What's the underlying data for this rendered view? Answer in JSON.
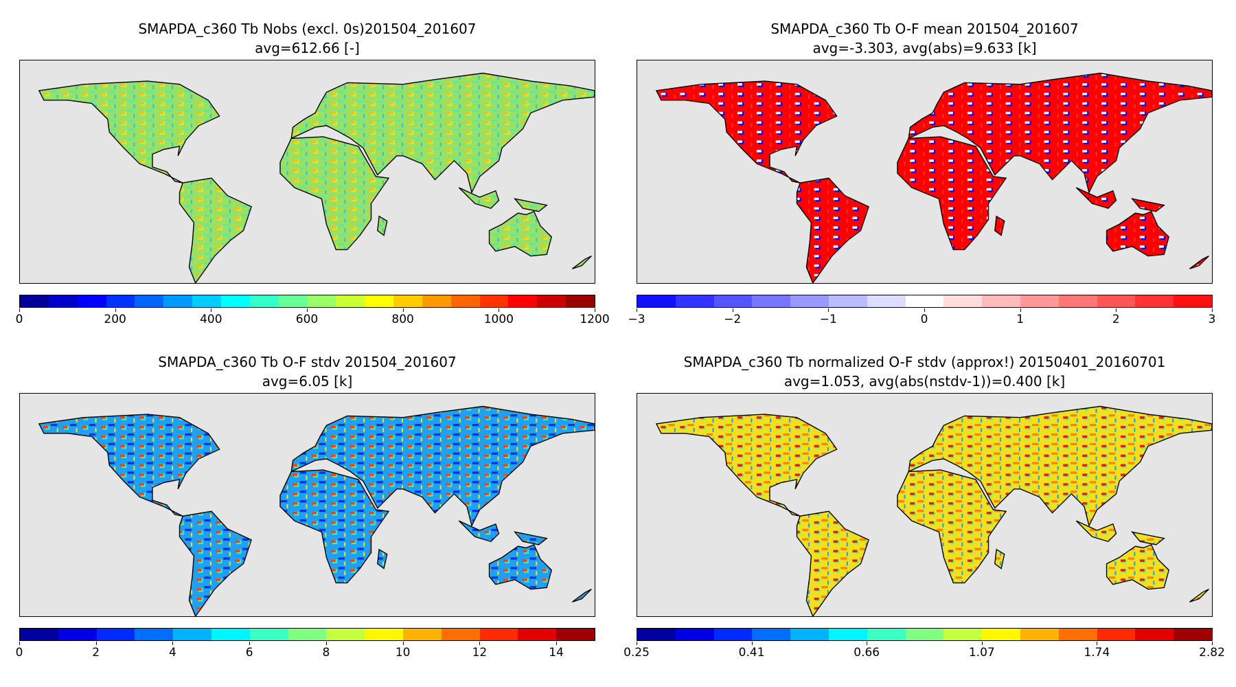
{
  "chart_data": [
    {
      "type": "heatmap",
      "title": "SMAPDA_c360 Tb Nobs (excl. 0s)201504_201607",
      "subtitle": "avg=612.66 [-]",
      "colormap": "jet",
      "range": [
        0,
        1200
      ],
      "levels": 20,
      "ticks": [
        "0",
        "200",
        "400",
        "600",
        "800",
        "1000",
        "1200"
      ],
      "tick_values": [
        0,
        200,
        400,
        600,
        800,
        1000,
        1200
      ],
      "land_tint": [
        "#9be060",
        "#c8f040",
        "#60e8a0",
        "#20c8f0",
        "#f0c020"
      ]
    },
    {
      "type": "heatmap",
      "title": "SMAPDA_c360 Tb O-F mean 201504_201607",
      "subtitle": "avg=-3.303, avg(abs)=9.633 [k]",
      "colormap": "bwr",
      "range": [
        -3,
        3
      ],
      "levels": 15,
      "ticks": [
        "−3",
        "−2",
        "−1",
        "0",
        "1",
        "2",
        "3"
      ],
      "tick_values": [
        -3,
        -2,
        -1,
        0,
        1,
        2,
        3
      ],
      "land_tint": [
        "#ff0000",
        "#0000ff",
        "#ff0000",
        "#ff3030",
        "#ffffff"
      ]
    },
    {
      "type": "heatmap",
      "title": "SMAPDA_c360 Tb O-F stdv 201504_201607",
      "subtitle": "avg=6.05 [k]",
      "colormap": "jet",
      "range": [
        0,
        15
      ],
      "levels": 15,
      "ticks": [
        "0",
        "2",
        "4",
        "6",
        "8",
        "10",
        "12",
        "14"
      ],
      "tick_values": [
        0,
        2,
        4,
        6,
        8,
        10,
        12,
        14
      ],
      "land_tint": [
        "#20a0f0",
        "#40f0c0",
        "#0030e0",
        "#f0e020",
        "#ff4000"
      ]
    },
    {
      "type": "heatmap",
      "title": "SMAPDA_c360 Tb normalized O-F stdv (approx!) 20150401_20160701",
      "subtitle": "avg=1.053, avg(abs(nstdv-1))=0.400 [k]",
      "colormap": "jet",
      "range": [
        0.25,
        2.82
      ],
      "levels": 15,
      "ticks": [
        "0.25",
        "0.41",
        "0.66",
        "1.07",
        "1.74",
        "2.82"
      ],
      "tick_values": [
        0,
        3,
        6,
        9,
        12,
        15
      ],
      "tick_scale": [
        0,
        15
      ],
      "land_tint": [
        "#f0e020",
        "#80f070",
        "#ff8000",
        "#20a0f0",
        "#e02000"
      ]
    }
  ]
}
